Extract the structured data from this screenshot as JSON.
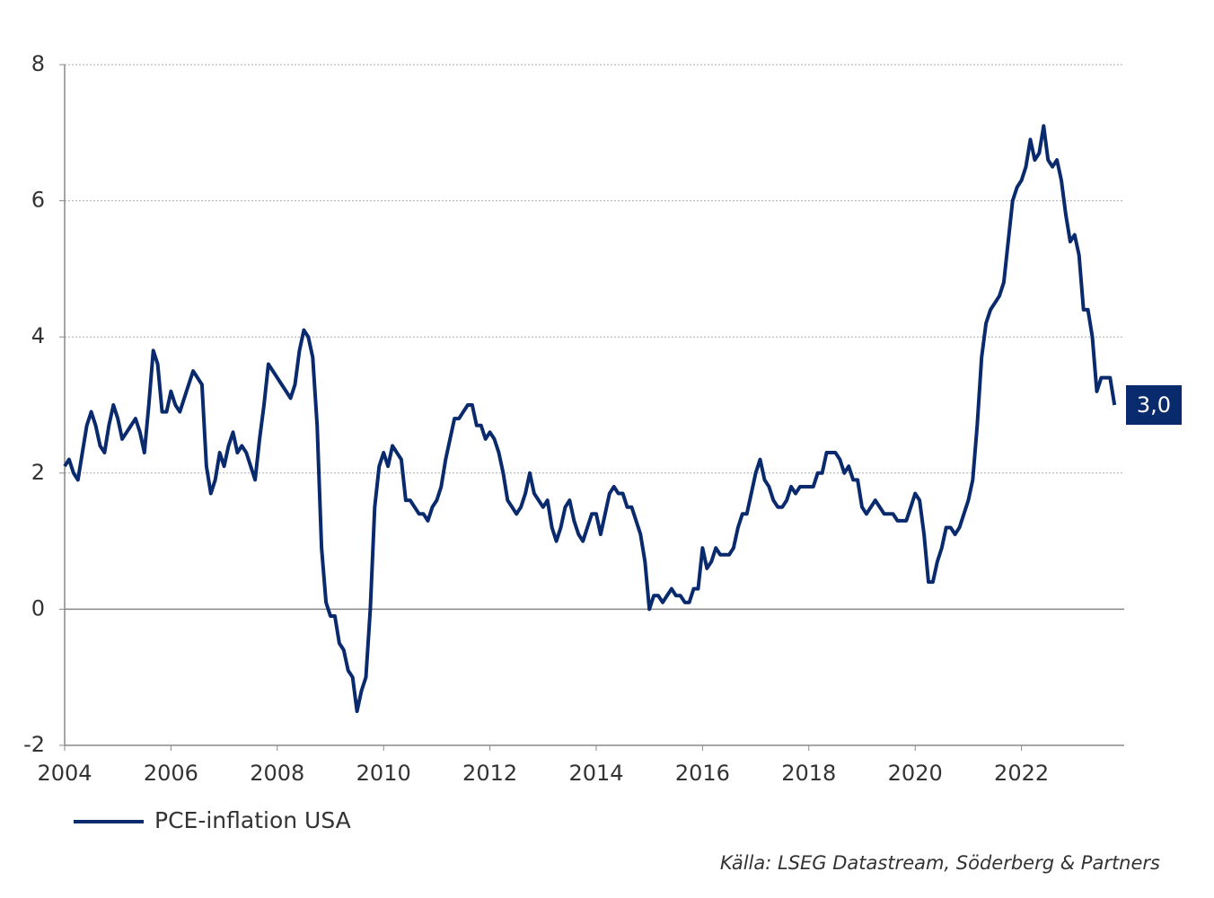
{
  "chart_data": {
    "type": "line",
    "source": "Källa: LSEG Datastream, Söderberg & Partners",
    "x": [
      2004,
      2004.083,
      2004.167,
      2004.25,
      2004.333,
      2004.417,
      2004.5,
      2004.583,
      2004.667,
      2004.75,
      2004.833,
      2004.917,
      2005,
      2005.083,
      2005.167,
      2005.25,
      2005.333,
      2005.417,
      2005.5,
      2005.583,
      2005.667,
      2005.75,
      2005.833,
      2005.917,
      2006,
      2006.083,
      2006.167,
      2006.25,
      2006.333,
      2006.417,
      2006.5,
      2006.583,
      2006.667,
      2006.75,
      2006.833,
      2006.917,
      2007,
      2007.083,
      2007.167,
      2007.25,
      2007.333,
      2007.417,
      2007.5,
      2007.583,
      2007.667,
      2007.75,
      2007.833,
      2007.917,
      2008,
      2008.083,
      2008.167,
      2008.25,
      2008.333,
      2008.417,
      2008.5,
      2008.583,
      2008.667,
      2008.75,
      2008.833,
      2008.917,
      2009,
      2009.083,
      2009.167,
      2009.25,
      2009.333,
      2009.417,
      2009.5,
      2009.583,
      2009.667,
      2009.75,
      2009.833,
      2009.917,
      2010,
      2010.083,
      2010.167,
      2010.25,
      2010.333,
      2010.417,
      2010.5,
      2010.583,
      2010.667,
      2010.75,
      2010.833,
      2010.917,
      2011,
      2011.083,
      2011.167,
      2011.25,
      2011.333,
      2011.417,
      2011.5,
      2011.583,
      2011.667,
      2011.75,
      2011.833,
      2011.917,
      2012,
      2012.083,
      2012.167,
      2012.25,
      2012.333,
      2012.417,
      2012.5,
      2012.583,
      2012.667,
      2012.75,
      2012.833,
      2012.917,
      2013,
      2013.083,
      2013.167,
      2013.25,
      2013.333,
      2013.417,
      2013.5,
      2013.583,
      2013.667,
      2013.75,
      2013.833,
      2013.917,
      2014,
      2014.083,
      2014.167,
      2014.25,
      2014.333,
      2014.417,
      2014.5,
      2014.583,
      2014.667,
      2014.75,
      2014.833,
      2014.917,
      2015,
      2015.083,
      2015.167,
      2015.25,
      2015.333,
      2015.417,
      2015.5,
      2015.583,
      2015.667,
      2015.75,
      2015.833,
      2015.917,
      2016,
      2016.083,
      2016.167,
      2016.25,
      2016.333,
      2016.417,
      2016.5,
      2016.583,
      2016.667,
      2016.75,
      2016.833,
      2016.917,
      2017,
      2017.083,
      2017.167,
      2017.25,
      2017.333,
      2017.417,
      2017.5,
      2017.583,
      2017.667,
      2017.75,
      2017.833,
      2017.917,
      2018,
      2018.083,
      2018.167,
      2018.25,
      2018.333,
      2018.417,
      2018.5,
      2018.583,
      2018.667,
      2018.75,
      2018.833,
      2018.917,
      2019,
      2019.083,
      2019.167,
      2019.25,
      2019.333,
      2019.417,
      2019.5,
      2019.583,
      2019.667,
      2019.75,
      2019.833,
      2019.917,
      2020,
      2020.083,
      2020.167,
      2020.25,
      2020.333,
      2020.417,
      2020.5,
      2020.583,
      2020.667,
      2020.75,
      2020.833,
      2020.917,
      2021,
      2021.083,
      2021.167,
      2021.25,
      2021.333,
      2021.417,
      2021.5,
      2021.583,
      2021.667,
      2021.75,
      2021.833,
      2021.917,
      2022,
      2022.083,
      2022.167,
      2022.25,
      2022.333,
      2022.417,
      2022.5,
      2022.583,
      2022.667,
      2022.75,
      2022.833,
      2022.917,
      2023,
      2023.083,
      2023.167,
      2023.25,
      2023.333,
      2023.417,
      2023.5,
      2023.583,
      2023.667,
      2023.75
    ],
    "series": [
      {
        "name": "PCE-inflation USA",
        "color": "#0a2a6e",
        "values": [
          2.1,
          2.2,
          2.0,
          1.9,
          2.3,
          2.7,
          2.9,
          2.7,
          2.4,
          2.3,
          2.7,
          3.0,
          2.8,
          2.5,
          2.6,
          2.7,
          2.8,
          2.6,
          2.3,
          3.0,
          3.8,
          3.6,
          2.9,
          2.9,
          3.2,
          3.0,
          2.9,
          3.1,
          3.3,
          3.5,
          3.4,
          3.3,
          2.1,
          1.7,
          1.9,
          2.3,
          2.1,
          2.4,
          2.6,
          2.3,
          2.4,
          2.3,
          2.1,
          1.9,
          2.5,
          3.0,
          3.6,
          3.5,
          3.4,
          3.3,
          3.2,
          3.1,
          3.3,
          3.8,
          4.1,
          4.0,
          3.7,
          2.7,
          0.9,
          0.1,
          -0.1,
          -0.1,
          -0.5,
          -0.6,
          -0.9,
          -1.0,
          -1.5,
          -1.2,
          -1.0,
          0.0,
          1.5,
          2.1,
          2.3,
          2.1,
          2.4,
          2.3,
          2.2,
          1.6,
          1.6,
          1.5,
          1.4,
          1.4,
          1.3,
          1.5,
          1.6,
          1.8,
          2.2,
          2.5,
          2.8,
          2.8,
          2.9,
          3.0,
          3.0,
          2.7,
          2.7,
          2.5,
          2.6,
          2.5,
          2.3,
          2.0,
          1.6,
          1.5,
          1.4,
          1.5,
          1.7,
          2.0,
          1.7,
          1.6,
          1.5,
          1.6,
          1.2,
          1.0,
          1.2,
          1.5,
          1.6,
          1.3,
          1.1,
          1.0,
          1.2,
          1.4,
          1.4,
          1.1,
          1.4,
          1.7,
          1.8,
          1.7,
          1.7,
          1.5,
          1.5,
          1.3,
          1.1,
          0.7,
          0.0,
          0.2,
          0.2,
          0.1,
          0.2,
          0.3,
          0.2,
          0.2,
          0.1,
          0.1,
          0.3,
          0.3,
          0.9,
          0.6,
          0.7,
          0.9,
          0.8,
          0.8,
          0.8,
          0.9,
          1.2,
          1.4,
          1.4,
          1.7,
          2.0,
          2.2,
          1.9,
          1.8,
          1.6,
          1.5,
          1.5,
          1.6,
          1.8,
          1.7,
          1.8,
          1.8,
          1.8,
          1.8,
          2.0,
          2.0,
          2.3,
          2.3,
          2.3,
          2.2,
          2.0,
          2.1,
          1.9,
          1.9,
          1.5,
          1.4,
          1.5,
          1.6,
          1.5,
          1.4,
          1.4,
          1.4,
          1.3,
          1.3,
          1.3,
          1.5,
          1.7,
          1.6,
          1.1,
          0.4,
          0.4,
          0.7,
          0.9,
          1.2,
          1.2,
          1.1,
          1.2,
          1.4,
          1.6,
          1.9,
          2.7,
          3.7,
          4.2,
          4.4,
          4.5,
          4.6,
          4.8,
          5.4,
          6.0,
          6.2,
          6.3,
          6.5,
          6.9,
          6.6,
          6.7,
          7.1,
          6.6,
          6.5,
          6.6,
          6.3,
          5.8,
          5.4,
          5.5,
          5.2,
          4.4,
          4.4,
          4.0,
          3.2,
          3.4,
          3.4,
          3.4,
          3.0
        ],
        "last_value_label": "3,0"
      }
    ],
    "xlim": [
      2004,
      2024
    ],
    "xticks": [
      2004,
      2006,
      2008,
      2010,
      2012,
      2014,
      2016,
      2018,
      2020,
      2022
    ],
    "ylim": [
      -2,
      8
    ],
    "yticks": [
      -2,
      0,
      2,
      4,
      6,
      8
    ],
    "grid": true,
    "legend": "bottom-left"
  }
}
